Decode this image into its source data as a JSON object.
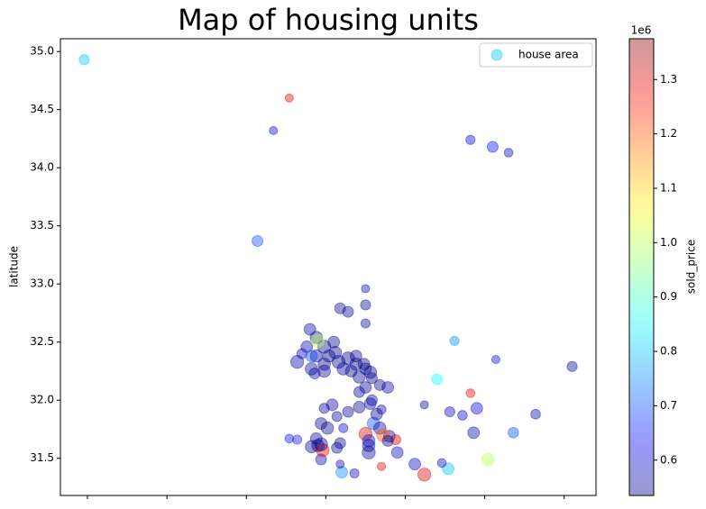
{
  "chart_data": {
    "type": "scatter",
    "title": "Map of housing units",
    "ylabel": "latitude",
    "xlim": [
      -118.67,
      -115.3
    ],
    "xticks": [
      -118.5,
      -118,
      -117.5,
      -117,
      -116.5,
      -116,
      -115.5
    ],
    "xtick_labels": false,
    "ylim": [
      31.18,
      35.11
    ],
    "yticks": [
      {
        "value": 31.5,
        "label": "31.5"
      },
      {
        "value": 32,
        "label": "32.0"
      },
      {
        "value": 32.5,
        "label": "32.5"
      },
      {
        "value": 33,
        "label": "33.0"
      },
      {
        "value": 33.5,
        "label": "33.5"
      },
      {
        "value": 34,
        "label": "34.0"
      },
      {
        "value": 34.5,
        "label": "34.5"
      },
      {
        "value": 35,
        "label": "35.0"
      }
    ],
    "legend": "upper right",
    "colormap": "jet",
    "alpha": 0.4,
    "colorbar": {
      "label": "sold_price",
      "offset_label": "1e6",
      "clim": [
        535000,
        1375000
      ],
      "ticks": [
        {
          "value": 600000,
          "label": "0.6"
        },
        {
          "value": 700000,
          "label": "0.7"
        },
        {
          "value": 800000,
          "label": "0.8"
        },
        {
          "value": 900000,
          "label": "0.9"
        },
        {
          "value": 1000000,
          "label": "1.0"
        },
        {
          "value": 1100000,
          "label": "1.1"
        },
        {
          "value": 1200000,
          "label": "1.2"
        },
        {
          "value": 1300000,
          "label": "1.3"
        }
      ]
    },
    "series": [
      {
        "name": "house area",
        "x": [
          -118.52,
          -117.23,
          -117.33,
          -116.09,
          -115.95,
          -115.85,
          -117.43,
          -116.75,
          -116.19,
          -115.93,
          -115.45,
          -116.3,
          -116.09,
          -116.38,
          -116.22,
          -116.05,
          -115.68,
          -116.14,
          -116.07,
          -115.82,
          -115.98,
          -116.23,
          -116.38,
          -116.44,
          -116.27,
          -116.65,
          -116.82,
          -116.9,
          -116.91,
          -117.03,
          -117.18,
          -117.23,
          -116.55,
          -116.73,
          -117.1,
          -117.06,
          -117.01,
          -116.94,
          -116.86,
          -116.81,
          -116.75,
          -116.71,
          -116.66,
          -116.61,
          -117.06,
          -117.09,
          -117.01,
          -116.92,
          -117.12,
          -117.18,
          -116.98,
          -116.89,
          -116.81,
          -116.91,
          -116.86,
          -116.75,
          -116.75,
          -117.05,
          -116.95,
          -117.01,
          -117.07,
          -116.79,
          -116.72,
          -116.76,
          -116.84,
          -117.15,
          -117.09,
          -117.01,
          -116.96,
          -116.93,
          -117.03,
          -116.99,
          -116.86,
          -116.79,
          -116.72,
          -116.7,
          -116.68,
          -116.66,
          -116.75,
          -116.73,
          -116.73,
          -116.6,
          -116.56,
          -116.64,
          -117.06,
          -117.05,
          -117.09,
          -117.02,
          -117.03,
          -116.93,
          -116.91,
          -116.61,
          -116.89,
          -116.65,
          -116.79,
          -116.75,
          -116.71
        ],
        "values": [
          34.93,
          34.6,
          34.32,
          34.24,
          34.18,
          34.13,
          33.37,
          32.96,
          32.51,
          32.35,
          32.29,
          32.18,
          32.06,
          31.96,
          31.9,
          31.93,
          31.88,
          31.87,
          31.72,
          31.72,
          31.49,
          31.41,
          31.36,
          31.45,
          31.46,
          31.43,
          31.37,
          31.38,
          31.45,
          31.49,
          31.66,
          31.67,
          31.55,
          31.55,
          32.61,
          32.54,
          32.46,
          32.41,
          32.36,
          32.31,
          32.27,
          32.19,
          32.13,
          32.11,
          32.38,
          32.27,
          32.31,
          32.33,
          32.46,
          32.33,
          32.38,
          32.27,
          32.38,
          32.79,
          32.76,
          32.82,
          32.66,
          32.51,
          32.5,
          32.25,
          32.23,
          32.2,
          32.24,
          32.31,
          32.25,
          32.4,
          32.38,
          31.93,
          31.96,
          31.86,
          31.8,
          31.76,
          31.9,
          31.94,
          31.97,
          31.8,
          31.88,
          31.76,
          31.71,
          31.61,
          31.65,
          31.69,
          31.66,
          31.7,
          31.67,
          31.61,
          31.6,
          31.57,
          31.62,
          31.59,
          31.63,
          31.65,
          31.76,
          31.92,
          32.07,
          32.11,
          32.0
        ],
        "c": [
          800000,
          1300000,
          600000,
          600000,
          650000,
          580000,
          700000,
          570000,
          750000,
          620000,
          560000,
          850000,
          1300000,
          560000,
          580000,
          620000,
          580000,
          600000,
          580000,
          700000,
          1000000,
          800000,
          1300000,
          600000,
          600000,
          1300000,
          580000,
          750000,
          580000,
          580000,
          650000,
          650000,
          580000,
          560000,
          560000,
          560000,
          540000,
          545000,
          545000,
          540000,
          540000,
          545000,
          545000,
          560000,
          545000,
          545000,
          545000,
          550000,
          560000,
          560000,
          545000,
          560000,
          545000,
          545000,
          545000,
          545000,
          545000,
          1000000,
          540000,
          550000,
          560000,
          540000,
          545000,
          540000,
          545000,
          600000,
          700000,
          560000,
          560000,
          560000,
          545000,
          550000,
          545000,
          545000,
          560000,
          700000,
          545000,
          560000,
          1300000,
          545000,
          600000,
          560000,
          1300000,
          1200000,
          560000,
          545000,
          545000,
          1300000,
          545000,
          560000,
          545000,
          545000,
          600000,
          560000,
          545000,
          560000,
          560000
        ],
        "s": [
          60,
          40,
          40,
          50,
          70,
          45,
          70,
          40,
          50,
          40,
          60,
          65,
          45,
          40,
          60,
          80,
          55,
          55,
          80,
          65,
          90,
          80,
          100,
          80,
          45,
          40,
          50,
          80,
          40,
          70,
          50,
          45,
          80,
          100,
          80,
          90,
          100,
          90,
          100,
          90,
          80,
          70,
          70,
          80,
          90,
          90,
          90,
          100,
          80,
          100,
          90,
          90,
          80,
          70,
          70,
          60,
          50,
          100,
          80,
          90,
          70,
          90,
          90,
          80,
          80,
          60,
          80,
          60,
          80,
          60,
          80,
          90,
          70,
          80,
          80,
          90,
          80,
          90,
          100,
          90,
          90,
          80,
          60,
          100,
          80,
          90,
          90,
          100,
          100,
          70,
          70,
          70,
          50,
          50,
          70,
          80,
          70
        ]
      }
    ]
  }
}
